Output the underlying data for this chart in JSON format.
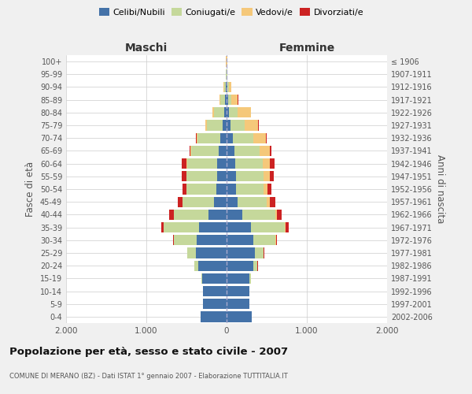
{
  "age_groups": [
    "0-4",
    "5-9",
    "10-14",
    "15-19",
    "20-24",
    "25-29",
    "30-34",
    "35-39",
    "40-44",
    "45-49",
    "50-54",
    "55-59",
    "60-64",
    "65-69",
    "70-74",
    "75-79",
    "80-84",
    "85-89",
    "90-94",
    "95-99",
    "100+"
  ],
  "birth_years": [
    "2002-2006",
    "1997-2001",
    "1992-1996",
    "1987-1991",
    "1982-1986",
    "1977-1981",
    "1972-1976",
    "1967-1971",
    "1962-1966",
    "1957-1961",
    "1952-1956",
    "1947-1951",
    "1942-1946",
    "1937-1941",
    "1932-1936",
    "1927-1931",
    "1922-1926",
    "1917-1921",
    "1912-1916",
    "1907-1911",
    "≤ 1906"
  ],
  "maschi": {
    "celibi": [
      320,
      290,
      290,
      300,
      350,
      380,
      370,
      340,
      230,
      160,
      130,
      120,
      115,
      100,
      80,
      50,
      30,
      20,
      10,
      4,
      2
    ],
    "coniugati": [
      2,
      3,
      5,
      15,
      50,
      110,
      290,
      440,
      430,
      390,
      370,
      380,
      380,
      340,
      280,
      200,
      130,
      55,
      20,
      4,
      2
    ],
    "vedovi": [
      0,
      0,
      0,
      0,
      1,
      1,
      1,
      1,
      1,
      2,
      3,
      4,
      5,
      8,
      10,
      12,
      15,
      10,
      5,
      2,
      1
    ],
    "divorziati": [
      0,
      0,
      0,
      1,
      2,
      3,
      10,
      30,
      50,
      60,
      50,
      50,
      55,
      12,
      8,
      5,
      3,
      2,
      1,
      0,
      0
    ]
  },
  "femmine": {
    "nubili": [
      310,
      280,
      280,
      280,
      330,
      350,
      330,
      300,
      200,
      140,
      120,
      115,
      110,
      100,
      80,
      50,
      30,
      20,
      10,
      4,
      2
    ],
    "coniugate": [
      2,
      3,
      5,
      20,
      55,
      110,
      280,
      430,
      410,
      360,
      340,
      350,
      340,
      310,
      250,
      180,
      110,
      40,
      15,
      3,
      1
    ],
    "vedove": [
      0,
      0,
      0,
      1,
      2,
      3,
      5,
      10,
      20,
      40,
      50,
      70,
      90,
      130,
      160,
      160,
      160,
      80,
      30,
      5,
      2
    ],
    "divorziate": [
      0,
      0,
      0,
      1,
      3,
      4,
      12,
      35,
      55,
      65,
      45,
      55,
      60,
      15,
      10,
      8,
      5,
      3,
      2,
      0,
      0
    ]
  },
  "colors": {
    "celibi": "#4472a8",
    "coniugati": "#c5d89b",
    "vedovi": "#f5c87a",
    "divorziati": "#cc2222"
  },
  "xlim": 2000,
  "title": "Popolazione per età, sesso e stato civile - 2007",
  "subtitle": "COMUNE DI MERANO (BZ) - Dati ISTAT 1° gennaio 2007 - Elaborazione TUTTITALIA.IT",
  "xlabel_maschi": "Maschi",
  "xlabel_femmine": "Femmine",
  "ylabel_left": "Fasce di età",
  "ylabel_right": "Anni di nascita",
  "legend_labels": [
    "Celibi/Nubili",
    "Coniugati/e",
    "Vedovi/e",
    "Divorziati/e"
  ],
  "background_color": "#f0f0f0",
  "plot_bg_color": "#ffffff"
}
